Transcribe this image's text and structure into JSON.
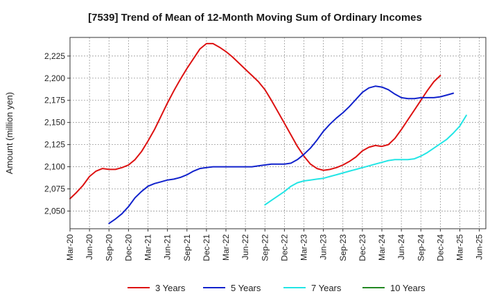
{
  "chart_data": {
    "type": "line",
    "title": "[7539]  Trend of Mean of 12-Month Moving Sum of Ordinary Incomes",
    "xlabel": "",
    "ylabel": "Amount (million yen)",
    "ylim": [
      2030,
      2246
    ],
    "y_ticks": [
      2050,
      2075,
      2100,
      2125,
      2150,
      2175,
      2200,
      2225
    ],
    "y_tick_labels": [
      "2,050",
      "2,075",
      "2,100",
      "2,125",
      "2,150",
      "2,175",
      "2,200",
      "2,225"
    ],
    "x_tick_labels": [
      "Mar-20",
      "Jun-20",
      "Sep-20",
      "Dec-20",
      "Mar-21",
      "Jun-21",
      "Sep-21",
      "Dec-21",
      "Mar-22",
      "Jun-22",
      "Sep-22",
      "Dec-22",
      "Mar-23",
      "Jun-23",
      "Sep-23",
      "Dec-23",
      "Mar-24",
      "Jun-24",
      "Sep-24",
      "Dec-24",
      "Mar-25",
      "Jun-25"
    ],
    "x_start": "Mar-20",
    "x_count_months": 64,
    "grid": true,
    "series": [
      {
        "name": "3 Years",
        "color": "#dd1111",
        "start_index": 0,
        "values": [
          2064,
          2071,
          2079,
          2089,
          2095,
          2098,
          2097,
          2097,
          2099,
          2102,
          2108,
          2117,
          2129,
          2142,
          2157,
          2172,
          2186,
          2199,
          2211,
          2222,
          2233,
          2239,
          2239,
          2235,
          2230,
          2224,
          2217,
          2210,
          2203,
          2196,
          2187,
          2175,
          2162,
          2149,
          2136,
          2123,
          2112,
          2103,
          2098,
          2096,
          2097,
          2099,
          2102,
          2106,
          2111,
          2118,
          2122,
          2124,
          2123,
          2125,
          2132,
          2142,
          2153,
          2164,
          2175,
          2186,
          2196,
          2203
        ]
      },
      {
        "name": "5 Years",
        "color": "#1122cc",
        "start_index": 6,
        "values": [
          2036,
          2041,
          2047,
          2055,
          2065,
          2072,
          2078,
          2081,
          2083,
          2085,
          2086,
          2088,
          2091,
          2095,
          2098,
          2099,
          2100,
          2100,
          2100,
          2100,
          2100,
          2100,
          2100,
          2101,
          2102,
          2103,
          2103,
          2103,
          2104,
          2108,
          2114,
          2121,
          2130,
          2140,
          2148,
          2155,
          2161,
          2168,
          2176,
          2184,
          2189,
          2191,
          2190,
          2187,
          2182,
          2178,
          2177,
          2177,
          2178,
          2178,
          2178,
          2179,
          2181,
          2183
        ]
      },
      {
        "name": "7 Years",
        "color": "#22e5e5",
        "start_index": 30,
        "values": [
          2057,
          2062,
          2067,
          2072,
          2078,
          2082,
          2084,
          2085,
          2086,
          2087,
          2089,
          2091,
          2093,
          2095,
          2097,
          2099,
          2101,
          2103,
          2105,
          2107,
          2108,
          2108,
          2108,
          2109,
          2112,
          2116,
          2121,
          2126,
          2131,
          2138,
          2146,
          2158
        ]
      },
      {
        "name": "10 Years",
        "color": "#228822",
        "start_index": 0,
        "values": []
      }
    ]
  }
}
